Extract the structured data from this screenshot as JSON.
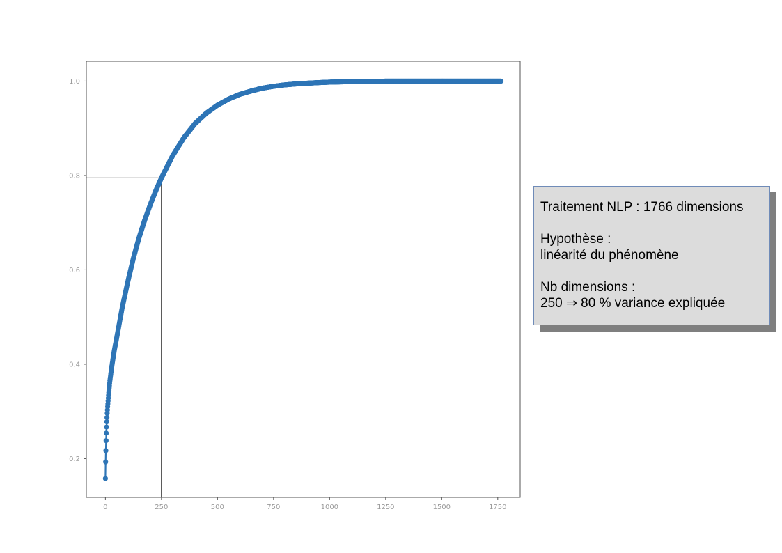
{
  "chart_data": {
    "type": "scatter",
    "title": "",
    "xlabel": "",
    "ylabel": "",
    "xlim": [
      -85,
      1850
    ],
    "ylim": [
      0.118,
      1.042
    ],
    "x_ticks": [
      0,
      250,
      500,
      750,
      1000,
      1250,
      1500,
      1750
    ],
    "x_tick_labels": [
      "0",
      "250",
      "500",
      "750",
      "1000",
      "1250",
      "1500",
      "1750"
    ],
    "y_ticks": [
      0.2,
      0.4,
      0.6,
      0.8,
      1.0
    ],
    "y_tick_labels": [
      "0.2",
      "0.4",
      "0.6",
      "0.8",
      "1.0"
    ],
    "series": [
      {
        "name": "",
        "color": "#2e75b6",
        "marker": "circle",
        "n_points": 1766,
        "description": "cumulative explained variance ratio",
        "x": [
          0,
          1,
          2,
          3,
          4,
          5,
          6,
          8,
          10,
          15,
          20,
          30,
          40,
          50,
          75,
          100,
          125,
          150,
          175,
          200,
          225,
          250,
          300,
          350,
          400,
          450,
          500,
          550,
          600,
          650,
          700,
          750,
          800,
          850,
          900,
          950,
          1000,
          1100,
          1200,
          1250,
          1300,
          1400,
          1500,
          1600,
          1700,
          1765
        ],
        "y": [
          0.158,
          0.193,
          0.217,
          0.238,
          0.254,
          0.267,
          0.278,
          0.296,
          0.31,
          0.34,
          0.365,
          0.4,
          0.43,
          0.455,
          0.52,
          0.575,
          0.625,
          0.668,
          0.705,
          0.738,
          0.768,
          0.795,
          0.842,
          0.88,
          0.91,
          0.932,
          0.949,
          0.962,
          0.972,
          0.979,
          0.985,
          0.989,
          0.992,
          0.994,
          0.9955,
          0.9968,
          0.9978,
          0.999,
          0.9997,
          0.9999,
          1.0,
          1.0,
          1.0,
          1.0,
          1.0,
          1.0
        ]
      }
    ],
    "reference_lines": {
      "x": 250,
      "y": 0.795,
      "color": "#000000"
    },
    "grid": false,
    "legend": "none"
  },
  "annotation": {
    "line1": "Traitement NLP : 1766 dimensions",
    "line2": "Hypothèse :",
    "line3": "linéarité du phénomène",
    "line4": "Nb dimensions :",
    "line5": "250 ⇒ 80 % variance expliquée"
  }
}
